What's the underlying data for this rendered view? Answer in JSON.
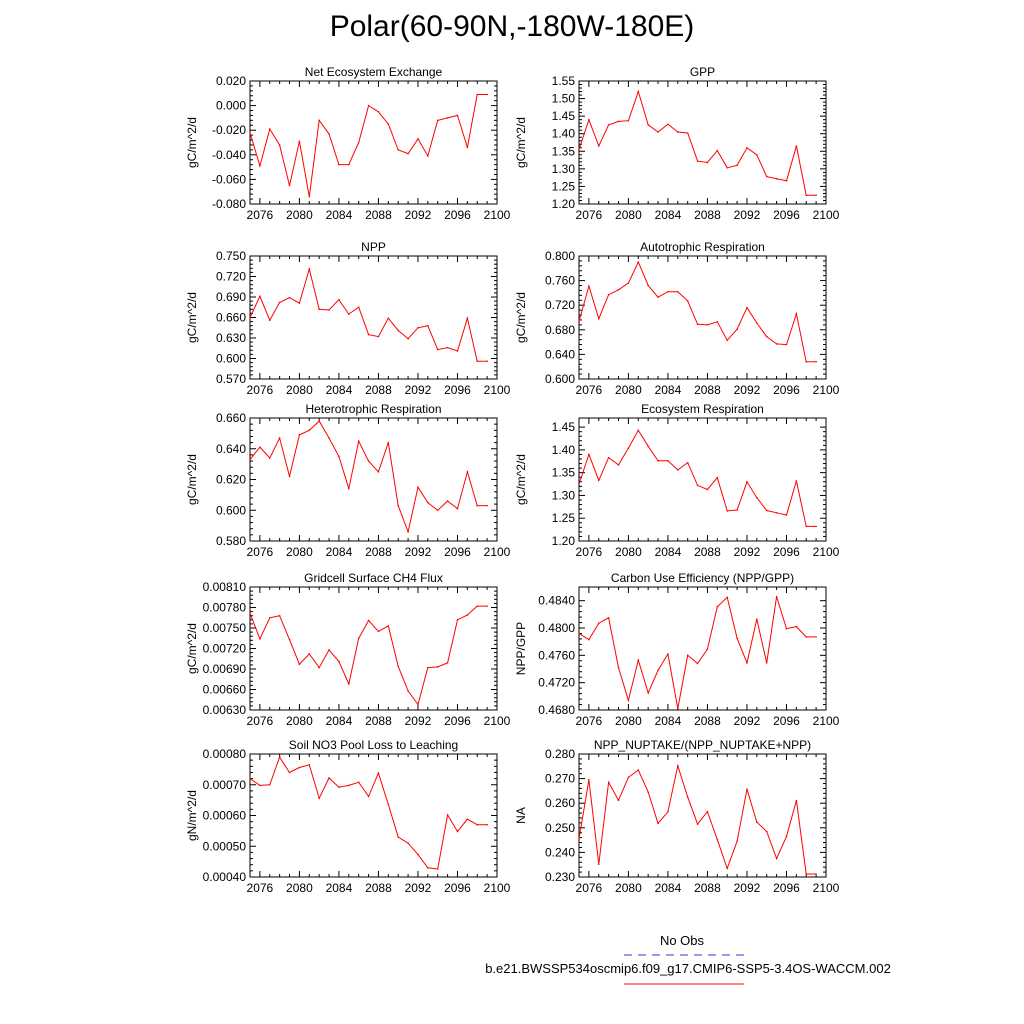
{
  "figure_title": "Polar(60-90N,-180W-180E)",
  "colors": {
    "model": "#ff0000",
    "obs": "#3333cc",
    "axis": "#000000"
  },
  "legend": {
    "obs_label": "No Obs",
    "model_label": "b.e21.BWSSP534oscmip6.f09_g17.CMIP6-SSP5-3.4OS-WACCM.002"
  },
  "chart_data": [
    {
      "type": "line",
      "title": "Net Ecosystem Exchange",
      "ylabel": "gC/m^2/d",
      "xlim": [
        2075,
        2100
      ],
      "ylim": [
        -0.08,
        0.02
      ],
      "xticks": [
        2076,
        2080,
        2084,
        2088,
        2092,
        2096,
        2100
      ],
      "yticks": [
        "-0.080",
        "-0.060",
        "-0.040",
        "-0.020",
        "0.000",
        "0.020"
      ],
      "ytick_values": [
        -0.08,
        -0.06,
        -0.04,
        -0.02,
        0,
        0.02
      ],
      "x": [
        2075,
        2076,
        2077,
        2078,
        2079,
        2080,
        2081,
        2082,
        2083,
        2084,
        2085,
        2086,
        2087,
        2088,
        2089,
        2090,
        2091,
        2092,
        2093,
        2094,
        2095,
        2096,
        2097,
        2098,
        2099
      ],
      "values": [
        -0.022,
        -0.049,
        -0.019,
        -0.032,
        -0.065,
        -0.029,
        -0.074,
        -0.012,
        -0.023,
        -0.048,
        -0.048,
        -0.03,
        0.0,
        -0.005,
        -0.015,
        -0.036,
        -0.039,
        -0.027,
        -0.041,
        -0.012,
        -0.01,
        -0.008,
        -0.034,
        0.009,
        0.009
      ]
    },
    {
      "type": "line",
      "title": "GPP",
      "ylabel": "gC/m^2/d",
      "xlim": [
        2075,
        2100
      ],
      "ylim": [
        1.2,
        1.55
      ],
      "xticks": [
        2076,
        2080,
        2084,
        2088,
        2092,
        2096,
        2100
      ],
      "yticks": [
        "1.20",
        "1.25",
        "1.30",
        "1.35",
        "1.40",
        "1.45",
        "1.50",
        "1.55"
      ],
      "ytick_values": [
        1.2,
        1.25,
        1.3,
        1.35,
        1.4,
        1.45,
        1.5,
        1.55
      ],
      "x": [
        2075,
        2076,
        2077,
        2078,
        2079,
        2080,
        2081,
        2082,
        2083,
        2084,
        2085,
        2086,
        2087,
        2088,
        2089,
        2090,
        2091,
        2092,
        2093,
        2094,
        2095,
        2096,
        2097,
        2098,
        2099
      ],
      "values": [
        1.355,
        1.44,
        1.365,
        1.425,
        1.435,
        1.437,
        1.52,
        1.425,
        1.405,
        1.427,
        1.405,
        1.402,
        1.322,
        1.318,
        1.352,
        1.303,
        1.31,
        1.36,
        1.34,
        1.278,
        1.272,
        1.266,
        1.365,
        1.225,
        1.225
      ]
    },
    {
      "type": "line",
      "title": "NPP",
      "ylabel": "gC/m^2/d",
      "xlim": [
        2075,
        2100
      ],
      "ylim": [
        0.57,
        0.75
      ],
      "xticks": [
        2076,
        2080,
        2084,
        2088,
        2092,
        2096,
        2100
      ],
      "yticks": [
        "0.570",
        "0.600",
        "0.630",
        "0.660",
        "0.690",
        "0.720",
        "0.750"
      ],
      "ytick_values": [
        0.57,
        0.6,
        0.63,
        0.66,
        0.69,
        0.72,
        0.75
      ],
      "x": [
        2075,
        2076,
        2077,
        2078,
        2079,
        2080,
        2081,
        2082,
        2083,
        2084,
        2085,
        2086,
        2087,
        2088,
        2089,
        2090,
        2091,
        2092,
        2093,
        2094,
        2095,
        2096,
        2097,
        2098,
        2099
      ],
      "values": [
        0.66,
        0.691,
        0.656,
        0.682,
        0.689,
        0.681,
        0.731,
        0.672,
        0.671,
        0.686,
        0.665,
        0.675,
        0.635,
        0.632,
        0.659,
        0.641,
        0.629,
        0.645,
        0.648,
        0.613,
        0.616,
        0.611,
        0.659,
        0.596,
        0.596
      ]
    },
    {
      "type": "line",
      "title": "Autotrophic Respiration",
      "ylabel": "gC/m^2/d",
      "xlim": [
        2075,
        2100
      ],
      "ylim": [
        0.6,
        0.8
      ],
      "xticks": [
        2076,
        2080,
        2084,
        2088,
        2092,
        2096,
        2100
      ],
      "yticks": [
        "0.600",
        "0.640",
        "0.680",
        "0.720",
        "0.760",
        "0.800"
      ],
      "ytick_values": [
        0.6,
        0.64,
        0.68,
        0.72,
        0.76,
        0.8
      ],
      "x": [
        2075,
        2076,
        2077,
        2078,
        2079,
        2080,
        2081,
        2082,
        2083,
        2084,
        2085,
        2086,
        2087,
        2088,
        2089,
        2090,
        2091,
        2092,
        2093,
        2094,
        2095,
        2096,
        2097,
        2098,
        2099
      ],
      "values": [
        0.694,
        0.751,
        0.698,
        0.737,
        0.745,
        0.756,
        0.79,
        0.752,
        0.733,
        0.742,
        0.742,
        0.727,
        0.689,
        0.688,
        0.693,
        0.663,
        0.681,
        0.716,
        0.691,
        0.669,
        0.657,
        0.656,
        0.706,
        0.628,
        0.628
      ]
    },
    {
      "type": "line",
      "title": "Heterotrophic Respiration",
      "ylabel": "gC/m^2/d",
      "xlim": [
        2075,
        2100
      ],
      "ylim": [
        0.58,
        0.66
      ],
      "xticks": [
        2076,
        2080,
        2084,
        2088,
        2092,
        2096,
        2100
      ],
      "yticks": [
        "0.580",
        "0.600",
        "0.620",
        "0.640",
        "0.660"
      ],
      "ytick_values": [
        0.58,
        0.6,
        0.62,
        0.64,
        0.66
      ],
      "x": [
        2075,
        2076,
        2077,
        2078,
        2079,
        2080,
        2081,
        2082,
        2083,
        2084,
        2085,
        2086,
        2087,
        2088,
        2089,
        2090,
        2091,
        2092,
        2093,
        2094,
        2095,
        2096,
        2097,
        2098,
        2099
      ],
      "values": [
        0.633,
        0.641,
        0.634,
        0.647,
        0.622,
        0.649,
        0.652,
        0.658,
        0.647,
        0.635,
        0.614,
        0.645,
        0.632,
        0.625,
        0.644,
        0.603,
        0.586,
        0.615,
        0.605,
        0.6,
        0.606,
        0.601,
        0.625,
        0.603,
        0.603
      ]
    },
    {
      "type": "line",
      "title": "Ecosystem Respiration",
      "ylabel": "gC/m^2/d",
      "xlim": [
        2075,
        2100
      ],
      "ylim": [
        1.2,
        1.47
      ],
      "xticks": [
        2076,
        2080,
        2084,
        2088,
        2092,
        2096,
        2100
      ],
      "yticks": [
        "1.20",
        "1.25",
        "1.30",
        "1.35",
        "1.40",
        "1.45"
      ],
      "ytick_values": [
        1.2,
        1.25,
        1.3,
        1.35,
        1.4,
        1.45
      ],
      "x": [
        2075,
        2076,
        2077,
        2078,
        2079,
        2080,
        2081,
        2082,
        2083,
        2084,
        2085,
        2086,
        2087,
        2088,
        2089,
        2090,
        2091,
        2092,
        2093,
        2094,
        2095,
        2096,
        2097,
        2098,
        2099
      ],
      "values": [
        1.325,
        1.39,
        1.333,
        1.383,
        1.367,
        1.404,
        1.443,
        1.408,
        1.376,
        1.376,
        1.356,
        1.372,
        1.322,
        1.313,
        1.339,
        1.266,
        1.268,
        1.33,
        1.295,
        1.267,
        1.262,
        1.257,
        1.332,
        1.232,
        1.232
      ]
    },
    {
      "type": "line",
      "title": "Gridcell Surface CH4 Flux",
      "ylabel": "gC/m^2/d",
      "xlim": [
        2075,
        2100
      ],
      "ylim": [
        0.0063,
        0.0081
      ],
      "xticks": [
        2076,
        2080,
        2084,
        2088,
        2092,
        2096,
        2100
      ],
      "yticks": [
        "0.00630",
        "0.00660",
        "0.00690",
        "0.00720",
        "0.00750",
        "0.00780",
        "0.00810"
      ],
      "ytick_values": [
        0.0063,
        0.0066,
        0.0069,
        0.0072,
        0.0075,
        0.0078,
        0.0081
      ],
      "x": [
        2075,
        2076,
        2077,
        2078,
        2079,
        2080,
        2081,
        2082,
        2083,
        2084,
        2085,
        2086,
        2087,
        2088,
        2089,
        2090,
        2091,
        2092,
        2093,
        2094,
        2095,
        2096,
        2097,
        2098,
        2099
      ],
      "values": [
        0.00772,
        0.00734,
        0.00765,
        0.00768,
        0.00733,
        0.00697,
        0.00712,
        0.00692,
        0.00718,
        0.00701,
        0.00668,
        0.00735,
        0.00761,
        0.00745,
        0.00753,
        0.00694,
        0.00658,
        0.00638,
        0.00692,
        0.00693,
        0.00699,
        0.00762,
        0.00769,
        0.00782,
        0.00782
      ]
    },
    {
      "type": "line",
      "title": "Carbon Use Efficiency (NPP/GPP)",
      "ylabel": "NPP/GPP",
      "xlim": [
        2075,
        2100
      ],
      "ylim": [
        0.468,
        0.486
      ],
      "xticks": [
        2076,
        2080,
        2084,
        2088,
        2092,
        2096,
        2100
      ],
      "yticks": [
        "0.4680",
        "0.4720",
        "0.4760",
        "0.4800",
        "0.4840"
      ],
      "ytick_values": [
        0.468,
        0.472,
        0.476,
        0.48,
        0.484
      ],
      "x": [
        2075,
        2076,
        2077,
        2078,
        2079,
        2080,
        2081,
        2082,
        2083,
        2084,
        2085,
        2086,
        2087,
        2088,
        2089,
        2090,
        2091,
        2092,
        2093,
        2094,
        2095,
        2096,
        2097,
        2098,
        2099
      ],
      "values": [
        0.4792,
        0.4783,
        0.4807,
        0.4815,
        0.4742,
        0.4694,
        0.4753,
        0.4705,
        0.4738,
        0.4762,
        0.4682,
        0.476,
        0.4748,
        0.4769,
        0.4831,
        0.4845,
        0.4785,
        0.4749,
        0.4813,
        0.4749,
        0.4846,
        0.4799,
        0.4802,
        0.4787,
        0.4787
      ]
    },
    {
      "type": "line",
      "title": "Soil NO3 Pool Loss to Leaching",
      "ylabel": "gN/m^2/d",
      "xlim": [
        2075,
        2100
      ],
      "ylim": [
        0.0004,
        0.0008
      ],
      "xticks": [
        2076,
        2080,
        2084,
        2088,
        2092,
        2096,
        2100
      ],
      "yticks": [
        "0.00040",
        "0.00050",
        "0.00060",
        "0.00070",
        "0.00080"
      ],
      "ytick_values": [
        0.0004,
        0.0005,
        0.0006,
        0.0007,
        0.0008
      ],
      "x": [
        2075,
        2076,
        2077,
        2078,
        2079,
        2080,
        2081,
        2082,
        2083,
        2084,
        2085,
        2086,
        2087,
        2088,
        2089,
        2090,
        2091,
        2092,
        2093,
        2094,
        2095,
        2096,
        2097,
        2098,
        2099
      ],
      "values": [
        0.00072,
        0.000698,
        0.0007,
        0.00079,
        0.00074,
        0.000756,
        0.000765,
        0.000656,
        0.000722,
        0.000692,
        0.000698,
        0.000708,
        0.000662,
        0.000738,
        0.000636,
        0.00053,
        0.00051,
        0.000473,
        0.00043,
        0.000426,
        0.000602,
        0.000548,
        0.000588,
        0.00057,
        0.00057
      ]
    },
    {
      "type": "line",
      "title": "NPP_NUPTAKE/(NPP_NUPTAKE+NPP)",
      "ylabel": "NA",
      "xlim": [
        2075,
        2100
      ],
      "ylim": [
        0.23,
        0.28
      ],
      "xticks": [
        2076,
        2080,
        2084,
        2088,
        2092,
        2096,
        2100
      ],
      "yticks": [
        "0.230",
        "0.240",
        "0.250",
        "0.260",
        "0.270",
        "0.280"
      ],
      "ytick_values": [
        0.23,
        0.24,
        0.25,
        0.26,
        0.27,
        0.28
      ],
      "x": [
        2075,
        2076,
        2077,
        2078,
        2079,
        2080,
        2081,
        2082,
        2083,
        2084,
        2085,
        2086,
        2087,
        2088,
        2089,
        2090,
        2091,
        2092,
        2093,
        2094,
        2095,
        2096,
        2097,
        2098,
        2099
      ],
      "values": [
        0.2455,
        0.2695,
        0.2352,
        0.2685,
        0.2612,
        0.2705,
        0.2735,
        0.2645,
        0.2518,
        0.2565,
        0.2752,
        0.2625,
        0.2515,
        0.2566,
        0.2452,
        0.2335,
        0.2445,
        0.2657,
        0.2523,
        0.2485,
        0.2375,
        0.2465,
        0.2611,
        0.2312,
        0.2312
      ]
    }
  ]
}
